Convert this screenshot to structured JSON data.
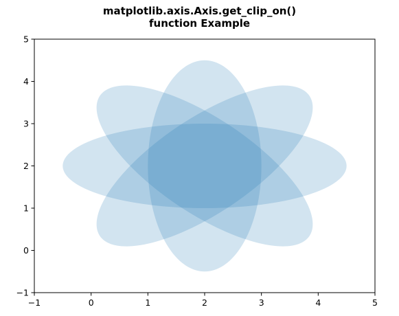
{
  "chart_data": {
    "type": "ellipse-patches",
    "title_lines": [
      "matplotlib.axis.Axis.get_clip_on()",
      "function Example"
    ],
    "xlabel": "",
    "ylabel": "",
    "xlim": [
      -1,
      5
    ],
    "ylim": [
      -1,
      5
    ],
    "xticks": [
      -1,
      0,
      1,
      2,
      3,
      4,
      5
    ],
    "yticks": [
      -1,
      0,
      1,
      2,
      3,
      4,
      5
    ],
    "xtick_labels": [
      "−1",
      "0",
      "1",
      "2",
      "3",
      "4",
      "5"
    ],
    "ytick_labels": [
      "−1",
      "0",
      "1",
      "2",
      "3",
      "4",
      "5"
    ],
    "grid": false,
    "fill_color": "#1f77b4",
    "fill_alpha": 0.2,
    "ellipses": [
      {
        "center": [
          2,
          2
        ],
        "width": 5.0,
        "height": 2.0,
        "angle_deg": 0
      },
      {
        "center": [
          2,
          2
        ],
        "width": 5.0,
        "height": 2.0,
        "angle_deg": 45
      },
      {
        "center": [
          2,
          2
        ],
        "width": 5.0,
        "height": 2.0,
        "angle_deg": 90
      },
      {
        "center": [
          2,
          2
        ],
        "width": 5.0,
        "height": 2.0,
        "angle_deg": 135
      }
    ]
  }
}
